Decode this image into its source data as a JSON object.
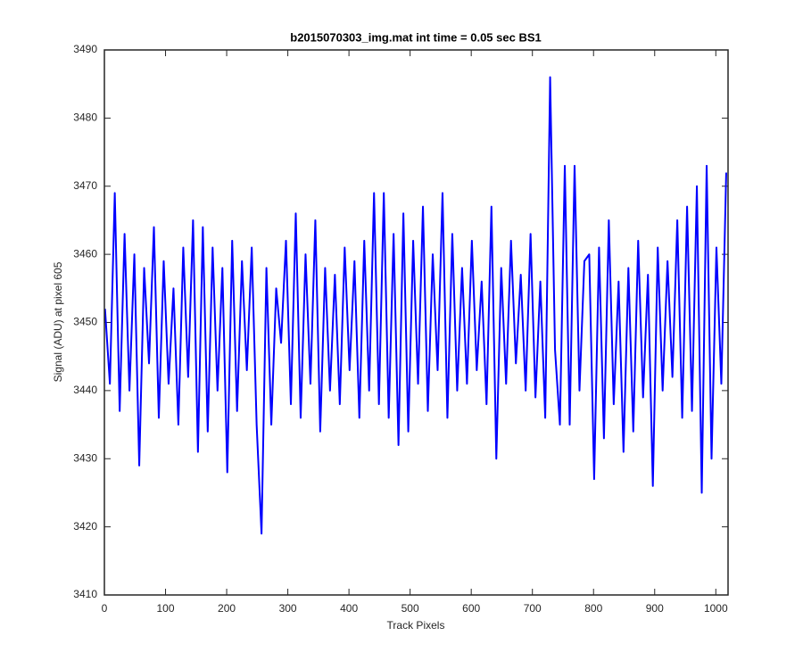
{
  "chart_data": {
    "type": "line",
    "title": "b2015070303_img.mat int time = 0.05 sec   BS1",
    "xlabel": "Track Pixels",
    "ylabel": "Signal (ADU) at pixel 605",
    "xlim": [
      0,
      1020
    ],
    "ylim": [
      3410,
      3490
    ],
    "xticks": [
      0,
      100,
      200,
      300,
      400,
      500,
      600,
      700,
      800,
      900,
      1000
    ],
    "yticks": [
      3410,
      3420,
      3430,
      3440,
      3450,
      3460,
      3470,
      3480,
      3490
    ],
    "series": [
      {
        "color": "#0000ff",
        "x": [
          1,
          9,
          17,
          25,
          33,
          41,
          49,
          57,
          65,
          73,
          81,
          89,
          97,
          105,
          113,
          121,
          129,
          137,
          145,
          153,
          161,
          169,
          177,
          185,
          193,
          201,
          209,
          217,
          225,
          233,
          241,
          249,
          257,
          265,
          273,
          281,
          289,
          297,
          305,
          313,
          321,
          329,
          337,
          345,
          353,
          361,
          369,
          377,
          385,
          393,
          401,
          409,
          417,
          425,
          433,
          441,
          449,
          457,
          465,
          473,
          481,
          489,
          497,
          505,
          513,
          521,
          529,
          537,
          545,
          553,
          561,
          569,
          577,
          585,
          593,
          601,
          609,
          617,
          625,
          633,
          641,
          649,
          657,
          665,
          673,
          681,
          689,
          697,
          705,
          713,
          721,
          729,
          737,
          745,
          753,
          761,
          769,
          777,
          785,
          793,
          801,
          809,
          817,
          825,
          833,
          841,
          849,
          857,
          865,
          873,
          881,
          889,
          897,
          905,
          913,
          921,
          929,
          937,
          945,
          953,
          961,
          969,
          977,
          985,
          993,
          1001,
          1009,
          1017
        ],
        "values": [
          3452,
          3441,
          3469,
          3437,
          3463,
          3440,
          3460,
          3429,
          3458,
          3444,
          3464,
          3436,
          3459,
          3441,
          3455,
          3435,
          3461,
          3442,
          3465,
          3431,
          3464,
          3434,
          3461,
          3440,
          3458,
          3428,
          3462,
          3437,
          3459,
          3443,
          3461,
          3435,
          3419,
          3458,
          3435,
          3455,
          3447,
          3462,
          3438,
          3466,
          3436,
          3460,
          3441,
          3465,
          3434,
          3458,
          3440,
          3457,
          3438,
          3461,
          3443,
          3459,
          3436,
          3462,
          3440,
          3469,
          3438,
          3469,
          3436,
          3463,
          3432,
          3466,
          3434,
          3462,
          3441,
          3467,
          3437,
          3460,
          3443,
          3469,
          3436,
          3463,
          3440,
          3458,
          3441,
          3462,
          3443,
          3456,
          3438,
          3467,
          3430,
          3458,
          3441,
          3462,
          3444,
          3457,
          3440,
          3463,
          3439,
          3456,
          3436,
          3486,
          3446,
          3435,
          3473,
          3435,
          3473,
          3440,
          3459,
          3460,
          3427,
          3461,
          3433,
          3465,
          3438,
          3456,
          3431,
          3458,
          3434,
          3462,
          3439,
          3457,
          3426,
          3461,
          3440,
          3459,
          3442,
          3465,
          3436,
          3467,
          3437,
          3470,
          3425,
          3473,
          3430,
          3461,
          3441,
          3472
        ]
      }
    ]
  }
}
